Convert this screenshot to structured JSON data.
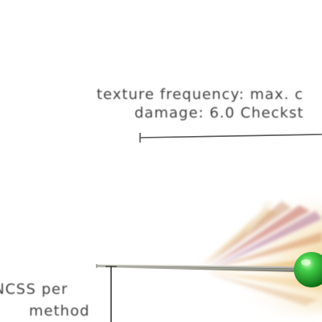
{
  "annotations": {
    "texture_frequency": "texture frequency: max. c",
    "damage": "damage: 6.0 Checkst",
    "ncss_per": "NCSS per",
    "method": "method"
  },
  "colors": {
    "sphere": "#1fae2a",
    "sphere_highlight": "#b8f5a8",
    "fan_warm": "#e3a84a",
    "fan_red": "#b5483c",
    "fan_purple": "#8c4a86",
    "stem": "#8e8e86",
    "rule": "#555555"
  },
  "icons": {
    "sphere": "green-sphere-glyph"
  }
}
